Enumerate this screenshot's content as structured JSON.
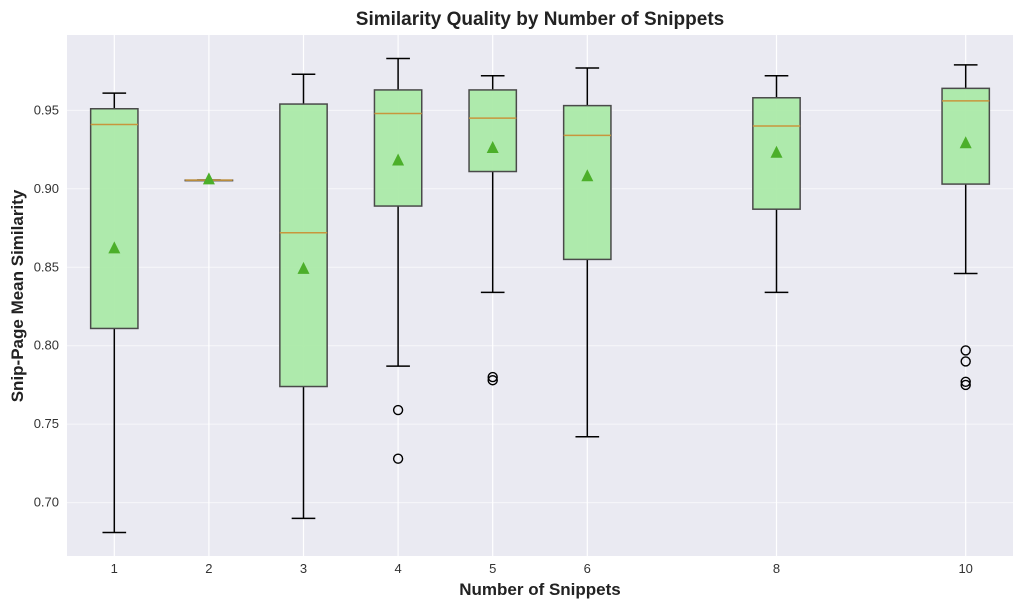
{
  "chart_data": {
    "type": "boxplot",
    "title": "Similarity Quality by Number of Snippets",
    "xlabel": "Number of Snippets",
    "ylabel": "Snip-Page Mean Similarity",
    "xlim": [
      0.5,
      10.5
    ],
    "ylim": [
      0.666,
      0.998
    ],
    "yticks": [
      0.7,
      0.75,
      0.8,
      0.85,
      0.9,
      0.95
    ],
    "ytick_labels": [
      "0.70",
      "0.75",
      "0.80",
      "0.85",
      "0.90",
      "0.95"
    ],
    "grid": true,
    "colors": {
      "background": "#eaeaf2",
      "box_fill": "#abeaa8",
      "box_edge": "#4a4a4a",
      "median": "#c8963c",
      "mean": "#4caf2a",
      "whisker": "#000000",
      "grid": "#ffffff"
    },
    "groups": [
      {
        "x": 1,
        "label": "1",
        "whislo": 0.681,
        "q1": 0.811,
        "median": 0.941,
        "q3": 0.951,
        "whishi": 0.961,
        "mean": 0.862,
        "fliers": []
      },
      {
        "x": 2,
        "label": "2",
        "whislo": 0.9055,
        "q1": 0.9055,
        "median": 0.9055,
        "q3": 0.9055,
        "whishi": 0.9055,
        "mean": 0.906,
        "fliers": []
      },
      {
        "x": 3,
        "label": "3",
        "whislo": 0.69,
        "q1": 0.774,
        "median": 0.872,
        "q3": 0.954,
        "whishi": 0.973,
        "mean": 0.849,
        "fliers": []
      },
      {
        "x": 4,
        "label": "4",
        "whislo": 0.787,
        "q1": 0.889,
        "median": 0.948,
        "q3": 0.963,
        "whishi": 0.983,
        "mean": 0.918,
        "fliers": [
          0.759,
          0.728
        ]
      },
      {
        "x": 5,
        "label": "5",
        "whislo": 0.834,
        "q1": 0.911,
        "median": 0.945,
        "q3": 0.963,
        "whishi": 0.972,
        "mean": 0.926,
        "fliers": [
          0.78,
          0.778
        ]
      },
      {
        "x": 6,
        "label": "6",
        "whislo": 0.742,
        "q1": 0.855,
        "median": 0.934,
        "q3": 0.953,
        "whishi": 0.977,
        "mean": 0.908,
        "fliers": []
      },
      {
        "x": 8,
        "label": "8",
        "whislo": 0.834,
        "q1": 0.887,
        "median": 0.94,
        "q3": 0.958,
        "whishi": 0.972,
        "mean": 0.923,
        "fliers": []
      },
      {
        "x": 10,
        "label": "10",
        "whislo": 0.846,
        "q1": 0.903,
        "median": 0.956,
        "q3": 0.964,
        "whishi": 0.979,
        "mean": 0.929,
        "fliers": [
          0.797,
          0.79,
          0.777,
          0.775
        ]
      }
    ]
  }
}
